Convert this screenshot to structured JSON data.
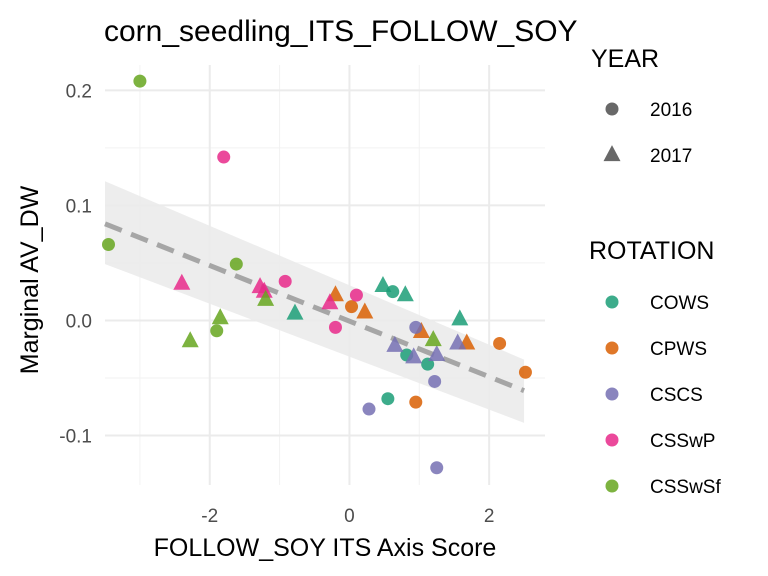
{
  "chart_data": {
    "type": "scatter",
    "title": "corn_seedling_ITS_FOLLOW_SOY",
    "xlabel": "FOLLOW_SOY ITS Axis Score",
    "ylabel": "Marginal AV_DW",
    "xlim": [
      -3.5,
      2.8
    ],
    "ylim": [
      -0.143,
      0.222
    ],
    "x_ticks": [
      -2,
      0,
      2
    ],
    "x_tick_labels": [
      "-2",
      "0",
      "2"
    ],
    "y_ticks": [
      -0.1,
      0.0,
      0.1,
      0.2
    ],
    "y_tick_labels": [
      "-0.1",
      "0.0",
      "0.1",
      "0.2"
    ],
    "grid": true,
    "legend_position": "right",
    "legends": {
      "shape": {
        "title": "YEAR",
        "entries": [
          {
            "label": "2016",
            "shape": "circle"
          },
          {
            "label": "2017",
            "shape": "triangle"
          }
        ]
      },
      "color": {
        "title": "ROTATION",
        "entries": [
          {
            "label": "COWS",
            "color": "#1B9E77"
          },
          {
            "label": "CPWS",
            "color": "#D95F02"
          },
          {
            "label": "CSCS",
            "color": "#7570B3"
          },
          {
            "label": "CSSwP",
            "color": "#E7298A"
          },
          {
            "label": "CSSwSf",
            "color": "#66A61E"
          }
        ]
      }
    },
    "trend": {
      "x": [
        -3.5,
        2.5
      ],
      "y": [
        0.084,
        -0.061
      ],
      "ci_lower": [
        0.049,
        -0.089
      ],
      "ci_upper": [
        0.121,
        -0.034
      ],
      "line_color": "#a6a6a6",
      "band_color": "#ebebeb"
    },
    "points": [
      {
        "x": 0.48,
        "y": 0.03,
        "rotation": "COWS",
        "year": "2017"
      },
      {
        "x": 0.62,
        "y": 0.025,
        "rotation": "COWS",
        "year": "2016"
      },
      {
        "x": 0.8,
        "y": 0.022,
        "rotation": "COWS",
        "year": "2017"
      },
      {
        "x": -0.78,
        "y": 0.006,
        "rotation": "COWS",
        "year": "2017"
      },
      {
        "x": 1.58,
        "y": 0.001,
        "rotation": "COWS",
        "year": "2017"
      },
      {
        "x": 0.82,
        "y": -0.03,
        "rotation": "COWS",
        "year": "2016"
      },
      {
        "x": 1.12,
        "y": -0.038,
        "rotation": "COWS",
        "year": "2016"
      },
      {
        "x": 0.55,
        "y": -0.068,
        "rotation": "COWS",
        "year": "2016"
      },
      {
        "x": -0.2,
        "y": 0.022,
        "rotation": "CPWS",
        "year": "2017"
      },
      {
        "x": 0.03,
        "y": 0.012,
        "rotation": "CPWS",
        "year": "2016"
      },
      {
        "x": 0.22,
        "y": 0.007,
        "rotation": "CPWS",
        "year": "2017"
      },
      {
        "x": 1.03,
        "y": -0.01,
        "rotation": "CPWS",
        "year": "2017"
      },
      {
        "x": 1.68,
        "y": -0.02,
        "rotation": "CPWS",
        "year": "2017"
      },
      {
        "x": 2.15,
        "y": -0.02,
        "rotation": "CPWS",
        "year": "2016"
      },
      {
        "x": 2.52,
        "y": -0.045,
        "rotation": "CPWS",
        "year": "2016"
      },
      {
        "x": 0.95,
        "y": -0.071,
        "rotation": "CPWS",
        "year": "2016"
      },
      {
        "x": 0.95,
        "y": -0.006,
        "rotation": "CSCS",
        "year": "2016"
      },
      {
        "x": 0.65,
        "y": -0.022,
        "rotation": "CSCS",
        "year": "2017"
      },
      {
        "x": 0.92,
        "y": -0.032,
        "rotation": "CSCS",
        "year": "2017"
      },
      {
        "x": 1.25,
        "y": -0.03,
        "rotation": "CSCS",
        "year": "2017"
      },
      {
        "x": 1.55,
        "y": -0.02,
        "rotation": "CSCS",
        "year": "2017"
      },
      {
        "x": 1.22,
        "y": -0.053,
        "rotation": "CSCS",
        "year": "2016"
      },
      {
        "x": 0.28,
        "y": -0.077,
        "rotation": "CSCS",
        "year": "2016"
      },
      {
        "x": 1.25,
        "y": -0.128,
        "rotation": "CSCS",
        "year": "2016"
      },
      {
        "x": -1.8,
        "y": 0.142,
        "rotation": "CSSwP",
        "year": "2016"
      },
      {
        "x": -2.4,
        "y": 0.032,
        "rotation": "CSSwP",
        "year": "2017"
      },
      {
        "x": -0.92,
        "y": 0.034,
        "rotation": "CSSwP",
        "year": "2016"
      },
      {
        "x": -1.28,
        "y": 0.029,
        "rotation": "CSSwP",
        "year": "2017"
      },
      {
        "x": -1.22,
        "y": 0.025,
        "rotation": "CSSwP",
        "year": "2017"
      },
      {
        "x": 0.1,
        "y": 0.022,
        "rotation": "CSSwP",
        "year": "2016"
      },
      {
        "x": -0.28,
        "y": 0.015,
        "rotation": "CSSwP",
        "year": "2017"
      },
      {
        "x": -0.2,
        "y": -0.006,
        "rotation": "CSSwP",
        "year": "2016"
      },
      {
        "x": -3.0,
        "y": 0.208,
        "rotation": "CSSwSf",
        "year": "2016"
      },
      {
        "x": -3.45,
        "y": 0.066,
        "rotation": "CSSwSf",
        "year": "2016"
      },
      {
        "x": -1.62,
        "y": 0.049,
        "rotation": "CSSwSf",
        "year": "2016"
      },
      {
        "x": -1.2,
        "y": 0.018,
        "rotation": "CSSwSf",
        "year": "2017"
      },
      {
        "x": -1.85,
        "y": 0.002,
        "rotation": "CSSwSf",
        "year": "2017"
      },
      {
        "x": -1.9,
        "y": -0.009,
        "rotation": "CSSwSf",
        "year": "2016"
      },
      {
        "x": -2.28,
        "y": -0.018,
        "rotation": "CSSwSf",
        "year": "2017"
      },
      {
        "x": 1.2,
        "y": -0.017,
        "rotation": "CSSwSf",
        "year": "2017"
      }
    ]
  }
}
